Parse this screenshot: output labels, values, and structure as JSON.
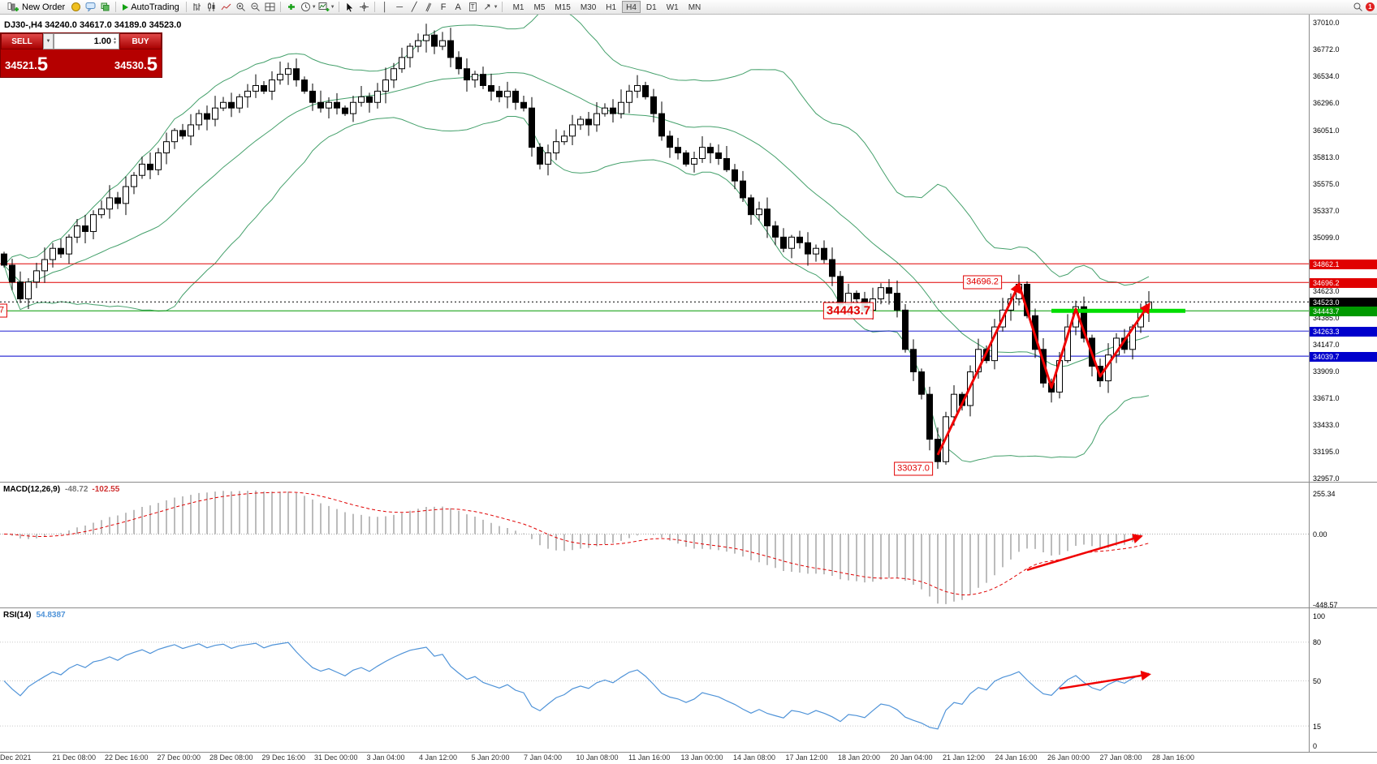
{
  "toolbar": {
    "new_order": "New Order",
    "autotrading": "AutoTrading",
    "timeframes": [
      "M1",
      "M5",
      "M15",
      "M30",
      "H1",
      "H4",
      "D1",
      "W1",
      "MN"
    ],
    "active_timeframe": "H4",
    "icons": [
      "new-order-icon",
      "expert-advisors-icon",
      "chat-icon",
      "community-icon",
      "play-icon",
      "bar-chart-icon",
      "candle-chart-icon",
      "line-chart-icon",
      "zoom-in-icon",
      "zoom-out-icon",
      "tile-windows-icon",
      "indicators-icon",
      "periods-clock-icon",
      "template-icon",
      "cursor-icon",
      "crosshair-icon",
      "vertical-line-icon",
      "horizontal-line-icon",
      "trendline-icon",
      "channel-icon",
      "fibonacci-icon",
      "text-icon",
      "label-icon",
      "arrows-icon",
      "search-icon",
      "notification-badge"
    ]
  },
  "trade_panel": {
    "sell_label": "SELL",
    "buy_label": "BUY",
    "volume": "1.00",
    "sell_price_main": "34521.",
    "sell_price_big": "5",
    "buy_price_main": "34530.",
    "buy_price_big": "5"
  },
  "chart": {
    "title": "DJ30-,H4 34240.0 34617.0 34189.0 34523.0"
  },
  "chart_data": {
    "type": "candlestick",
    "symbol": "DJ30-",
    "timeframe": "H4",
    "ohlc_display": [
      34240.0,
      34617.0,
      34189.0,
      34523.0
    ],
    "y_axis_ticks": [
      "37010.0",
      "36772.0",
      "36534.0",
      "36296.0",
      "36051.0",
      "35813.0",
      "35575.0",
      "35337.0",
      "35099.0",
      "34623.0",
      "34385.0",
      "34147.0",
      "33909.0",
      "33671.0",
      "33433.0",
      "33195.0",
      "32957.0"
    ],
    "price_levels": [
      {
        "price": 34862.1,
        "label": "34862.1",
        "color": "#e00000",
        "style": "solid"
      },
      {
        "price": 34696.2,
        "label": "34696.2",
        "color": "#e00000",
        "style": "solid"
      },
      {
        "price": 34523.0,
        "label": "34523.0",
        "color": "#000000",
        "style": "dotted"
      },
      {
        "price": 34443.7,
        "label": "34443.7",
        "color": "#009900",
        "style": "solid"
      },
      {
        "price": 34263.3,
        "label": "34263.3",
        "color": "#0000cc",
        "style": "solid"
      },
      {
        "price": 34039.7,
        "label": "34039.7",
        "color": "#0000cc",
        "style": "solid"
      }
    ],
    "closes": [
      34850,
      34700,
      34550,
      34700,
      34800,
      34900,
      35000,
      34950,
      35100,
      35200,
      35150,
      35300,
      35350,
      35450,
      35400,
      35550,
      35650,
      35750,
      35700,
      35850,
      35950,
      36050,
      36000,
      36100,
      36200,
      36150,
      36250,
      36300,
      36250,
      36350,
      36400,
      36450,
      36400,
      36500,
      36550,
      36600,
      36500,
      36400,
      36300,
      36250,
      36300,
      36250,
      36200,
      36300,
      36350,
      36300,
      36400,
      36500,
      36600,
      36700,
      36800,
      36850,
      36900,
      36800,
      36850,
      36700,
      36600,
      36500,
      36550,
      36450,
      36400,
      36350,
      36400,
      36300,
      36250,
      35900,
      35750,
      35850,
      35950,
      36000,
      36100,
      36150,
      36100,
      36200,
      36250,
      36200,
      36300,
      36400,
      36450,
      36350,
      36200,
      36000,
      35900,
      35850,
      35750,
      35800,
      35900,
      35850,
      35800,
      35700,
      35600,
      35450,
      35300,
      35350,
      35200,
      35100,
      35000,
      35100,
      35050,
      34950,
      35000,
      34900,
      34750,
      34500,
      34600,
      34550,
      34450,
      34550,
      34650,
      34600,
      34450,
      34100,
      33900,
      33700,
      33300,
      33100,
      33500,
      33700,
      33600,
      33900,
      34100,
      34000,
      34300,
      34450,
      34550,
      34680,
      34400,
      34100,
      33800,
      33720,
      34000,
      34300,
      34480,
      34200,
      33950,
      33820,
      34050,
      34200,
      34100,
      34300,
      34450,
      34523
    ],
    "bollinger": {
      "period": 20,
      "deviation": 2
    },
    "highlight_segment": {
      "price": 34443.7,
      "from_bar": 129,
      "to_bar": 145.5,
      "color": "#00dd00"
    },
    "annotations": [
      {
        "bar": 120.5,
        "price": 34700,
        "text": "34696.2",
        "size": "small"
      },
      {
        "bar": 104,
        "price": 34450,
        "text": "34443.7",
        "size": "large"
      },
      {
        "bar": 112,
        "price": 33045,
        "text": "33037.0",
        "size": "small"
      },
      {
        "bar": -0.3,
        "price": 34450,
        "text": "7",
        "size": "small"
      }
    ],
    "trend_arrows": [
      {
        "points": [
          [
            115,
            33160
          ],
          [
            125,
            34680
          ]
        ]
      },
      {
        "points": [
          [
            125,
            34680
          ],
          [
            129,
            33760
          ],
          [
            132,
            34460
          ],
          [
            135,
            33860
          ],
          [
            141,
            34500
          ]
        ]
      }
    ],
    "macd": {
      "name": "MACD(12,26,9)",
      "value_main": "-48.72",
      "value_signal": "-102.55",
      "scale_labels": [
        "255.34",
        "0.00",
        "-448.57"
      ],
      "scale_values": [
        255.34,
        0.0,
        -448.57
      ],
      "arrow": [
        [
          126,
          -230
        ],
        [
          140,
          -15
        ]
      ]
    },
    "rsi": {
      "name": "RSI(14)",
      "value": "54.8387",
      "scale_labels": [
        "100",
        "80",
        "50",
        "15",
        "0"
      ],
      "scale_values": [
        100,
        80,
        50,
        15,
        0
      ],
      "level_lines": [
        80,
        50,
        15
      ],
      "arrow": [
        [
          130,
          44
        ],
        [
          141,
          55
        ]
      ]
    },
    "time_labels": [
      "Dec 2021",
      "21 Dec 08:00",
      "22 Dec 16:00",
      "27 Dec 00:00",
      "28 Dec 08:00",
      "29 Dec 16:00",
      "31 Dec 00:00",
      "3 Jan 04:00",
      "4 Jan 12:00",
      "5 Jan 20:00",
      "7 Jan 04:00",
      "10 Jan 08:00",
      "11 Jan 16:00",
      "13 Jan 00:00",
      "14 Jan 08:00",
      "17 Jan 12:00",
      "18 Jan 20:00",
      "20 Jan 04:00",
      "21 Jan 12:00",
      "24 Jan 16:00",
      "26 Jan 00:00",
      "27 Jan 08:00",
      "28 Jan 16:00"
    ]
  }
}
